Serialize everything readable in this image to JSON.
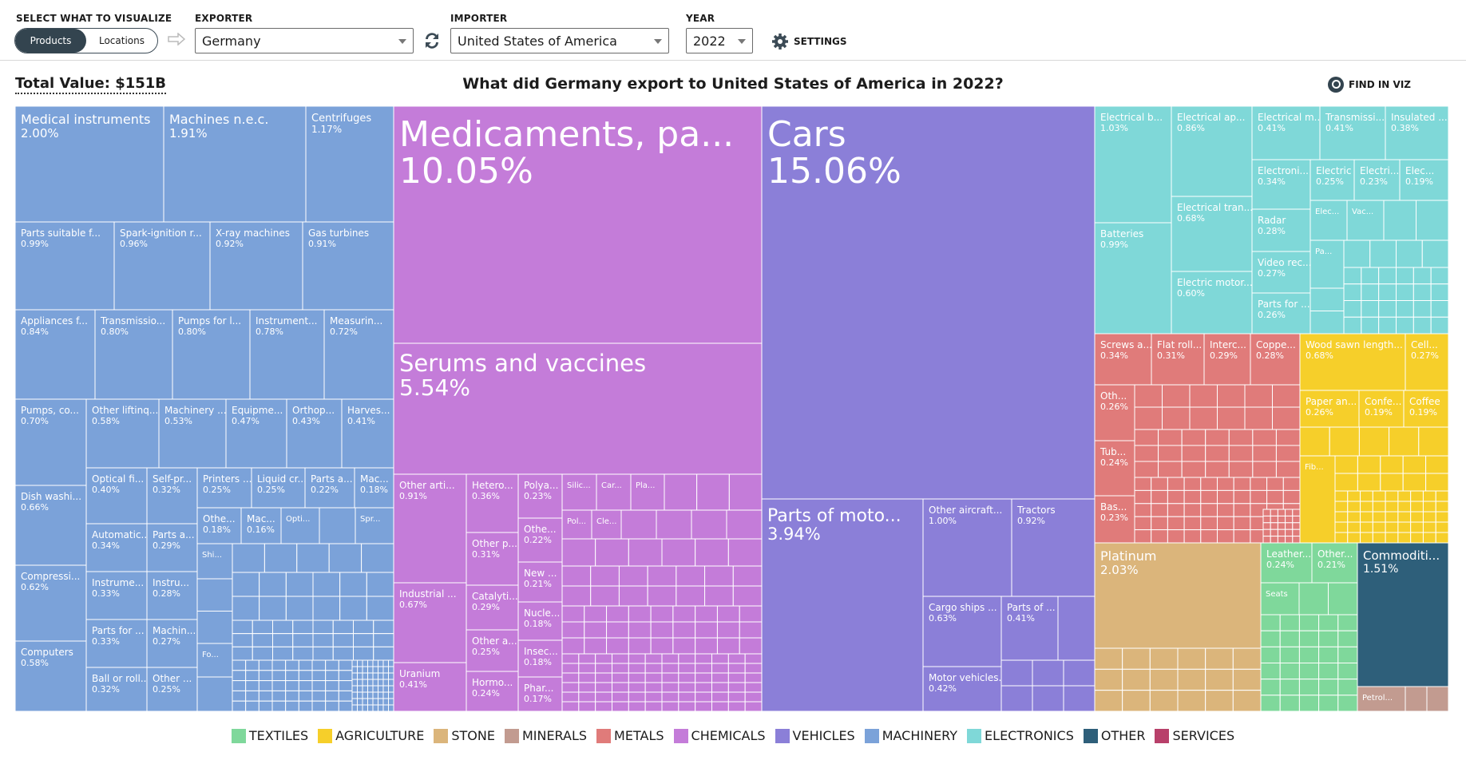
{
  "controls": {
    "select_label": "SELECT WHAT TO VISUALIZE",
    "toggle_products": "Products",
    "toggle_locations": "Locations",
    "exporter_label": "EXPORTER",
    "exporter_value": "Germany",
    "importer_label": "IMPORTER",
    "importer_value": "United States of America",
    "year_label": "YEAR",
    "year_value": "2022",
    "settings_label": "SETTINGS"
  },
  "header": {
    "total_value": "Total Value: $151B",
    "title": "What did Germany export to United States of America in 2022?",
    "find_label": "FIND IN VIZ"
  },
  "colors": {
    "TEXTILES": "#7fd89b",
    "AGRICULTURE": "#f6cf2a",
    "STONE": "#dbb57b",
    "MINERALS": "#c29b90",
    "METALS": "#e07b7a",
    "CHEMICALS": "#c47cd9",
    "VEHICLES": "#8b7fd8",
    "MACHINERY": "#7ba2d9",
    "ELECTRONICS": "#7fd8d8",
    "OTHER": "#2e5f7a",
    "SERVICES": "#b8406a"
  },
  "legend": [
    "TEXTILES",
    "AGRICULTURE",
    "STONE",
    "MINERALS",
    "METALS",
    "CHEMICALS",
    "VEHICLES",
    "MACHINERY",
    "ELECTRONICS",
    "OTHER",
    "SERVICES"
  ],
  "chart_data": {
    "type": "treemap",
    "unit": "percent of total export value",
    "products": [
      {
        "name": "Cars",
        "value": 15.06,
        "sector": "VEHICLES",
        "label": "Cars",
        "pct": "15.06%"
      },
      {
        "name": "Medicaments, packaged",
        "value": 10.05,
        "sector": "CHEMICALS",
        "label": "Medicaments, pa...",
        "pct": "10.05%"
      },
      {
        "name": "Serums and vaccines",
        "value": 5.54,
        "sector": "CHEMICALS",
        "label": "Serums and vaccines",
        "pct": "5.54%"
      },
      {
        "name": "Parts of motor vehicles",
        "value": 3.94,
        "sector": "VEHICLES",
        "label": "Parts of moto...",
        "pct": "3.94%"
      },
      {
        "name": "Platinum",
        "value": 2.03,
        "sector": "STONE",
        "label": "Platinum",
        "pct": "2.03%"
      },
      {
        "name": "Medical instruments",
        "value": 2.0,
        "sector": "MACHINERY",
        "label": "Medical instruments",
        "pct": "2.00%"
      },
      {
        "name": "Machines n.e.c.",
        "value": 1.91,
        "sector": "MACHINERY",
        "label": "Machines n.e.c.",
        "pct": "1.91%"
      },
      {
        "name": "Commodities",
        "value": 1.51,
        "sector": "OTHER",
        "label": "Commoditi...",
        "pct": "1.51%"
      },
      {
        "name": "Centrifuges",
        "value": 1.17,
        "sector": "MACHINERY",
        "label": "Centrifuges",
        "pct": "1.17%"
      },
      {
        "name": "Electrical boards",
        "value": 1.03,
        "sector": "ELECTRONICS",
        "label": "Electrical b...",
        "pct": "1.03%"
      },
      {
        "name": "Other aircraft",
        "value": 1.0,
        "sector": "VEHICLES",
        "label": "Other aircraft...",
        "pct": "1.00%"
      },
      {
        "name": "Parts suitable for engines",
        "value": 0.99,
        "sector": "MACHINERY",
        "label": "Parts suitable f...",
        "pct": "0.99%"
      },
      {
        "name": "Batteries",
        "value": 0.99,
        "sector": "ELECTRONICS",
        "label": "Batteries",
        "pct": "0.99%"
      },
      {
        "name": "Spark-ignition engines",
        "value": 0.96,
        "sector": "MACHINERY",
        "label": "Spark-ignition r...",
        "pct": "0.96%"
      },
      {
        "name": "X-ray machines",
        "value": 0.92,
        "sector": "MACHINERY",
        "label": "X-ray machines",
        "pct": "0.92%"
      },
      {
        "name": "Tractors",
        "value": 0.92,
        "sector": "VEHICLES",
        "label": "Tractors",
        "pct": "0.92%"
      },
      {
        "name": "Other articles",
        "value": 0.91,
        "sector": "CHEMICALS",
        "label": "Other arti...",
        "pct": "0.91%"
      },
      {
        "name": "Gas turbines",
        "value": 0.91,
        "sector": "MACHINERY",
        "label": "Gas turbines",
        "pct": "0.91%"
      },
      {
        "name": "Electrical apparatus",
        "value": 0.86,
        "sector": "ELECTRONICS",
        "label": "Electrical ap...",
        "pct": "0.86%"
      },
      {
        "name": "Appliances for",
        "value": 0.84,
        "sector": "MACHINERY",
        "label": "Appliances f...",
        "pct": "0.84%"
      },
      {
        "name": "Transmission shafts",
        "value": 0.8,
        "sector": "MACHINERY",
        "label": "Transmissio...",
        "pct": "0.80%"
      },
      {
        "name": "Pumps for liquids",
        "value": 0.8,
        "sector": "MACHINERY",
        "label": "Pumps for l...",
        "pct": "0.80%"
      },
      {
        "name": "Instruments",
        "value": 0.78,
        "sector": "MACHINERY",
        "label": "Instrument...",
        "pct": "0.78%"
      },
      {
        "name": "Measuring instruments",
        "value": 0.72,
        "sector": "MACHINERY",
        "label": "Measurin...",
        "pct": "0.72%"
      },
      {
        "name": "Pumps, compressors",
        "value": 0.7,
        "sector": "MACHINERY",
        "label": "Pumps, co...",
        "pct": "0.70%"
      },
      {
        "name": "Electrical transformers",
        "value": 0.68,
        "sector": "ELECTRONICS",
        "label": "Electrical tran...",
        "pct": "0.68%"
      },
      {
        "name": "Wood sawn lengthwise",
        "value": 0.68,
        "sector": "AGRICULTURE",
        "label": "Wood sawn length...",
        "pct": "0.68%"
      },
      {
        "name": "Industrial chemicals",
        "value": 0.67,
        "sector": "CHEMICALS",
        "label": "Industrial ...",
        "pct": "0.67%"
      },
      {
        "name": "Dish washing machines",
        "value": 0.66,
        "sector": "MACHINERY",
        "label": "Dish washi...",
        "pct": "0.66%"
      },
      {
        "name": "Cargo ships",
        "value": 0.63,
        "sector": "VEHICLES",
        "label": "Cargo ships ...",
        "pct": "0.63%"
      },
      {
        "name": "Compression",
        "value": 0.62,
        "sector": "MACHINERY",
        "label": "Compressi...",
        "pct": "0.62%"
      },
      {
        "name": "Electric motors",
        "value": 0.6,
        "sector": "ELECTRONICS",
        "label": "Electric motor...",
        "pct": "0.60%"
      },
      {
        "name": "Other lifting machinery",
        "value": 0.58,
        "sector": "MACHINERY",
        "label": "Other liftinq...",
        "pct": "0.58%"
      },
      {
        "name": "Computers",
        "value": 0.58,
        "sector": "MACHINERY",
        "label": "Computers",
        "pct": "0.58%"
      },
      {
        "name": "Machinery",
        "value": 0.53,
        "sector": "MACHINERY",
        "label": "Machinery ...",
        "pct": "0.53%"
      },
      {
        "name": "Equipment",
        "value": 0.47,
        "sector": "MACHINERY",
        "label": "Equipme...",
        "pct": "0.47%"
      },
      {
        "name": "Orthopedic",
        "value": 0.43,
        "sector": "MACHINERY",
        "label": "Orthop...",
        "pct": "0.43%"
      },
      {
        "name": "Harvesters",
        "value": 0.41,
        "sector": "MACHINERY",
        "label": "Harves...",
        "pct": "0.41%"
      },
      {
        "name": "Uranium",
        "value": 0.41,
        "sector": "CHEMICALS",
        "label": "Uranium",
        "pct": "0.41%"
      },
      {
        "name": "Parts of aircraft",
        "value": 0.41,
        "sector": "VEHICLES",
        "label": "Parts of ...",
        "pct": "0.41%"
      },
      {
        "name": "Electrical machines",
        "value": 0.41,
        "sector": "ELECTRONICS",
        "label": "Electrical m...",
        "pct": "0.41%"
      },
      {
        "name": "Transmission apparatus",
        "value": 0.41,
        "sector": "ELECTRONICS",
        "label": "Transmissi...",
        "pct": "0.41%"
      },
      {
        "name": "Optical fibers",
        "value": 0.4,
        "sector": "MACHINERY",
        "label": "Optical fi...",
        "pct": "0.40%"
      },
      {
        "name": "Motor vehicles",
        "value": 0.42,
        "sector": "VEHICLES",
        "label": "Motor vehicles...",
        "pct": "0.42%"
      },
      {
        "name": "Insulated",
        "value": 0.38,
        "sector": "ELECTRONICS",
        "label": "Insulated ...",
        "pct": "0.38%"
      },
      {
        "name": "Heterocyclic",
        "value": 0.36,
        "sector": "CHEMICALS",
        "label": "Hetero...",
        "pct": "0.36%"
      },
      {
        "name": "Automatic",
        "value": 0.34,
        "sector": "MACHINERY",
        "label": "Automatic...",
        "pct": "0.34%"
      },
      {
        "name": "Screws and bolts",
        "value": 0.34,
        "sector": "METALS",
        "label": "Screws a...",
        "pct": "0.34%"
      },
      {
        "name": "Electronic",
        "value": 0.34,
        "sector": "ELECTRONICS",
        "label": "Electroni...",
        "pct": "0.34%"
      },
      {
        "name": "Instruments 2",
        "value": 0.33,
        "sector": "MACHINERY",
        "label": "Instrume...",
        "pct": "0.33%"
      },
      {
        "name": "Parts for",
        "value": 0.33,
        "sector": "MACHINERY",
        "label": "Parts for ...",
        "pct": "0.33%"
      },
      {
        "name": "Self-propelled",
        "value": 0.32,
        "sector": "MACHINERY",
        "label": "Self-pr...",
        "pct": "0.32%"
      },
      {
        "name": "Ball or roller bearings",
        "value": 0.32,
        "sector": "MACHINERY",
        "label": "Ball or roll...",
        "pct": "0.32%"
      },
      {
        "name": "Other p",
        "value": 0.31,
        "sector": "CHEMICALS",
        "label": "Other p...",
        "pct": "0.31%"
      },
      {
        "name": "Flat rolled",
        "value": 0.31,
        "sector": "METALS",
        "label": "Flat roll...",
        "pct": "0.31%"
      },
      {
        "name": "Parts a",
        "value": 0.29,
        "sector": "MACHINERY",
        "label": "Parts a...",
        "pct": "0.29%"
      },
      {
        "name": "Catalytic",
        "value": 0.29,
        "sector": "CHEMICALS",
        "label": "Catalyti...",
        "pct": "0.29%"
      },
      {
        "name": "Interchangeable",
        "value": 0.29,
        "sector": "METALS",
        "label": "Interc...",
        "pct": "0.29%"
      },
      {
        "name": "Instru",
        "value": 0.28,
        "sector": "MACHINERY",
        "label": "Instru...",
        "pct": "0.28%"
      },
      {
        "name": "Radar",
        "value": 0.28,
        "sector": "ELECTRONICS",
        "label": "Radar",
        "pct": "0.28%"
      },
      {
        "name": "Copper",
        "value": 0.28,
        "sector": "METALS",
        "label": "Coppe...",
        "pct": "0.28%"
      },
      {
        "name": "Machin",
        "value": 0.27,
        "sector": "MACHINERY",
        "label": "Machin...",
        "pct": "0.27%"
      },
      {
        "name": "Video recording",
        "value": 0.27,
        "sector": "ELECTRONICS",
        "label": "Video rec...",
        "pct": "0.27%"
      },
      {
        "name": "Cellulose",
        "value": 0.27,
        "sector": "AGRICULTURE",
        "label": "Cell...",
        "pct": "0.27%"
      },
      {
        "name": "Printers",
        "value": 0.25,
        "sector": "MACHINERY",
        "label": "Printers ...",
        "pct": "0.25%"
      },
      {
        "name": "Liquid crystal",
        "value": 0.25,
        "sector": "MACHINERY",
        "label": "Liquid cr...",
        "pct": "0.25%"
      },
      {
        "name": "Other 2",
        "value": 0.25,
        "sector": "MACHINERY",
        "label": "Other ...",
        "pct": "0.25%"
      },
      {
        "name": "Other a",
        "value": 0.25,
        "sector": "CHEMICALS",
        "label": "Other a...",
        "pct": "0.25%"
      },
      {
        "name": "Electric",
        "value": 0.25,
        "sector": "ELECTRONICS",
        "label": "Electric ...",
        "pct": "0.25%"
      },
      {
        "name": "Hormones",
        "value": 0.24,
        "sector": "CHEMICALS",
        "label": "Hormo...",
        "pct": "0.24%"
      },
      {
        "name": "Leather",
        "value": 0.24,
        "sector": "TEXTILES",
        "label": "Leather...",
        "pct": "0.24%"
      },
      {
        "name": "Tubes",
        "value": 0.24,
        "sector": "METALS",
        "label": "Tub...",
        "pct": "0.24%"
      },
      {
        "name": "Polyacetals",
        "value": 0.23,
        "sector": "CHEMICALS",
        "label": "Polya...",
        "pct": "0.23%"
      },
      {
        "name": "Electri",
        "value": 0.23,
        "sector": "ELECTRONICS",
        "label": "Electri...",
        "pct": "0.23%"
      },
      {
        "name": "Base metals",
        "value": 0.23,
        "sector": "METALS",
        "label": "Bas...",
        "pct": "0.23%"
      },
      {
        "name": "Parts a 2",
        "value": 0.22,
        "sector": "MACHINERY",
        "label": "Parts a...",
        "pct": "0.22%"
      },
      {
        "name": "Other 3",
        "value": 0.22,
        "sector": "CHEMICALS",
        "label": "Othe...",
        "pct": "0.22%"
      },
      {
        "name": "New",
        "value": 0.21,
        "sector": "CHEMICALS",
        "label": "New ...",
        "pct": "0.21%"
      },
      {
        "name": "Other textiles",
        "value": 0.21,
        "sector": "TEXTILES",
        "label": "Other...",
        "pct": "0.21%"
      },
      {
        "name": "Mac",
        "value": 0.18,
        "sector": "MACHINERY",
        "label": "Mac...",
        "pct": "0.18%"
      },
      {
        "name": "Othe",
        "value": 0.18,
        "sector": "MACHINERY",
        "label": "Othe...",
        "pct": "0.18%"
      },
      {
        "name": "Nucleic",
        "value": 0.18,
        "sector": "CHEMICALS",
        "label": "Nucle...",
        "pct": "0.18%"
      },
      {
        "name": "Insecticides",
        "value": 0.18,
        "sector": "CHEMICALS",
        "label": "Insec...",
        "pct": "0.18%"
      },
      {
        "name": "Pharma",
        "value": 0.17,
        "sector": "CHEMICALS",
        "label": "Phar...",
        "pct": "0.17%"
      },
      {
        "name": "Mac 2",
        "value": 0.16,
        "sector": "MACHINERY",
        "label": "Mac...",
        "pct": "0.16%"
      },
      {
        "name": "Paper",
        "value": 0.26,
        "sector": "AGRICULTURE",
        "label": "Paper an...",
        "pct": "0.26%"
      },
      {
        "name": "Confectionery",
        "value": 0.19,
        "sector": "AGRICULTURE",
        "label": "Confe...",
        "pct": "0.19%"
      },
      {
        "name": "Coffee",
        "value": 0.19,
        "sector": "AGRICULTURE",
        "label": "Coffee",
        "pct": "0.19%"
      },
      {
        "name": "Elec",
        "value": 0.19,
        "sector": "ELECTRONICS",
        "label": "Elec...",
        "pct": "0.19%"
      },
      {
        "name": "Parts for electronics",
        "value": 0.26,
        "sector": "ELECTRONICS",
        "label": "Parts for ...",
        "pct": "0.26%"
      },
      {
        "name": "Other metals",
        "value": 0.26,
        "sector": "METALS",
        "label": "Oth...",
        "pct": "0.26%"
      }
    ],
    "small_labels": [
      "Opti...",
      "Spr...",
      "Shi...",
      "Fo...",
      "Silic...",
      "Car...",
      "Pla...",
      "Pol...",
      "Cle...",
      "Elec...",
      "Vac...",
      "Pa...",
      "Fib...",
      "Seats",
      "Petrol..."
    ],
    "legend_placement": "bottom"
  }
}
